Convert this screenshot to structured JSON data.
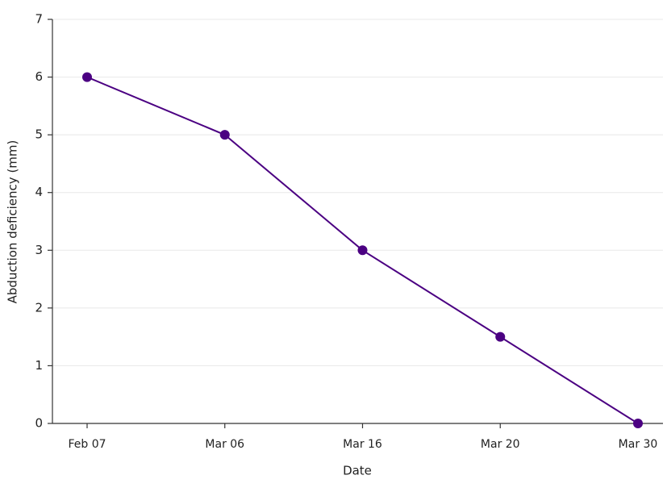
{
  "chart_data": {
    "type": "line",
    "x_label": "Date",
    "y_label": "Abduction deficiency (mm)",
    "categories": [
      "Feb 07",
      "Mar 06",
      "Mar 16",
      "Mar 20",
      "Mar 30"
    ],
    "values": [
      6,
      5,
      3,
      1.5,
      0
    ],
    "color": "#4b0082",
    "ylim": [
      0,
      7
    ],
    "yticks": [
      0,
      1,
      2,
      3,
      4,
      5,
      6,
      7
    ],
    "grid": true
  }
}
